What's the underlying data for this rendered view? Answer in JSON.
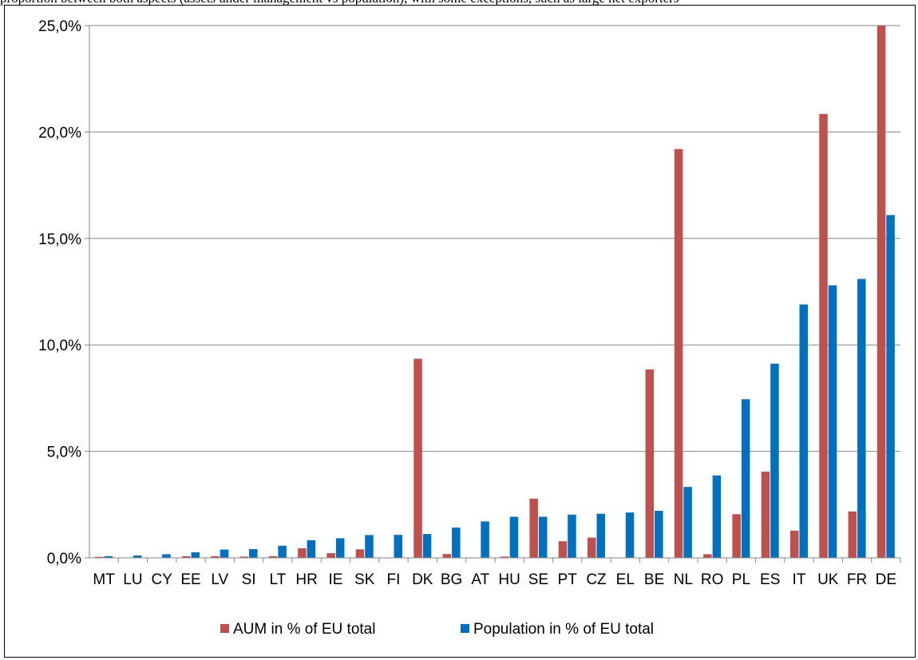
{
  "caption_fragment": "proportion between both aspects (assets under management vs population), with some exceptions, such as large net exporters",
  "chart_data": {
    "type": "bar",
    "categories": [
      "MT",
      "LU",
      "CY",
      "EE",
      "LV",
      "SI",
      "LT",
      "HR",
      "IE",
      "SK",
      "FI",
      "DK",
      "BG",
      "AT",
      "HU",
      "SE",
      "PT",
      "CZ",
      "EL",
      "BE",
      "NL",
      "RO",
      "PL",
      "ES",
      "IT",
      "UK",
      "FR",
      "DE"
    ],
    "series": [
      {
        "name": "AUM in % of EU total",
        "color": "#C0504D",
        "values": [
          0.05,
          0.0,
          0.02,
          0.08,
          0.08,
          0.06,
          0.08,
          0.45,
          0.22,
          0.4,
          0.0,
          9.35,
          0.18,
          0.0,
          0.06,
          2.78,
          0.78,
          0.95,
          0.0,
          8.85,
          19.2,
          0.17,
          2.05,
          4.05,
          1.28,
          20.85,
          2.18,
          25.0
        ]
      },
      {
        "name": "Population in % of EU total",
        "color": "#0070C0",
        "values": [
          0.08,
          0.11,
          0.17,
          0.26,
          0.39,
          0.41,
          0.57,
          0.83,
          0.92,
          1.07,
          1.08,
          1.12,
          1.42,
          1.71,
          1.93,
          1.93,
          2.03,
          2.07,
          2.13,
          2.21,
          3.33,
          3.87,
          7.45,
          9.12,
          11.9,
          12.8,
          13.1,
          16.1
        ]
      }
    ],
    "yticks": [
      "0,0%",
      "5,0%",
      "10,0%",
      "15,0%",
      "20,0%",
      "25,0%"
    ],
    "ylim": [
      0,
      25
    ],
    "grid": true,
    "legend_position": "bottom"
  }
}
